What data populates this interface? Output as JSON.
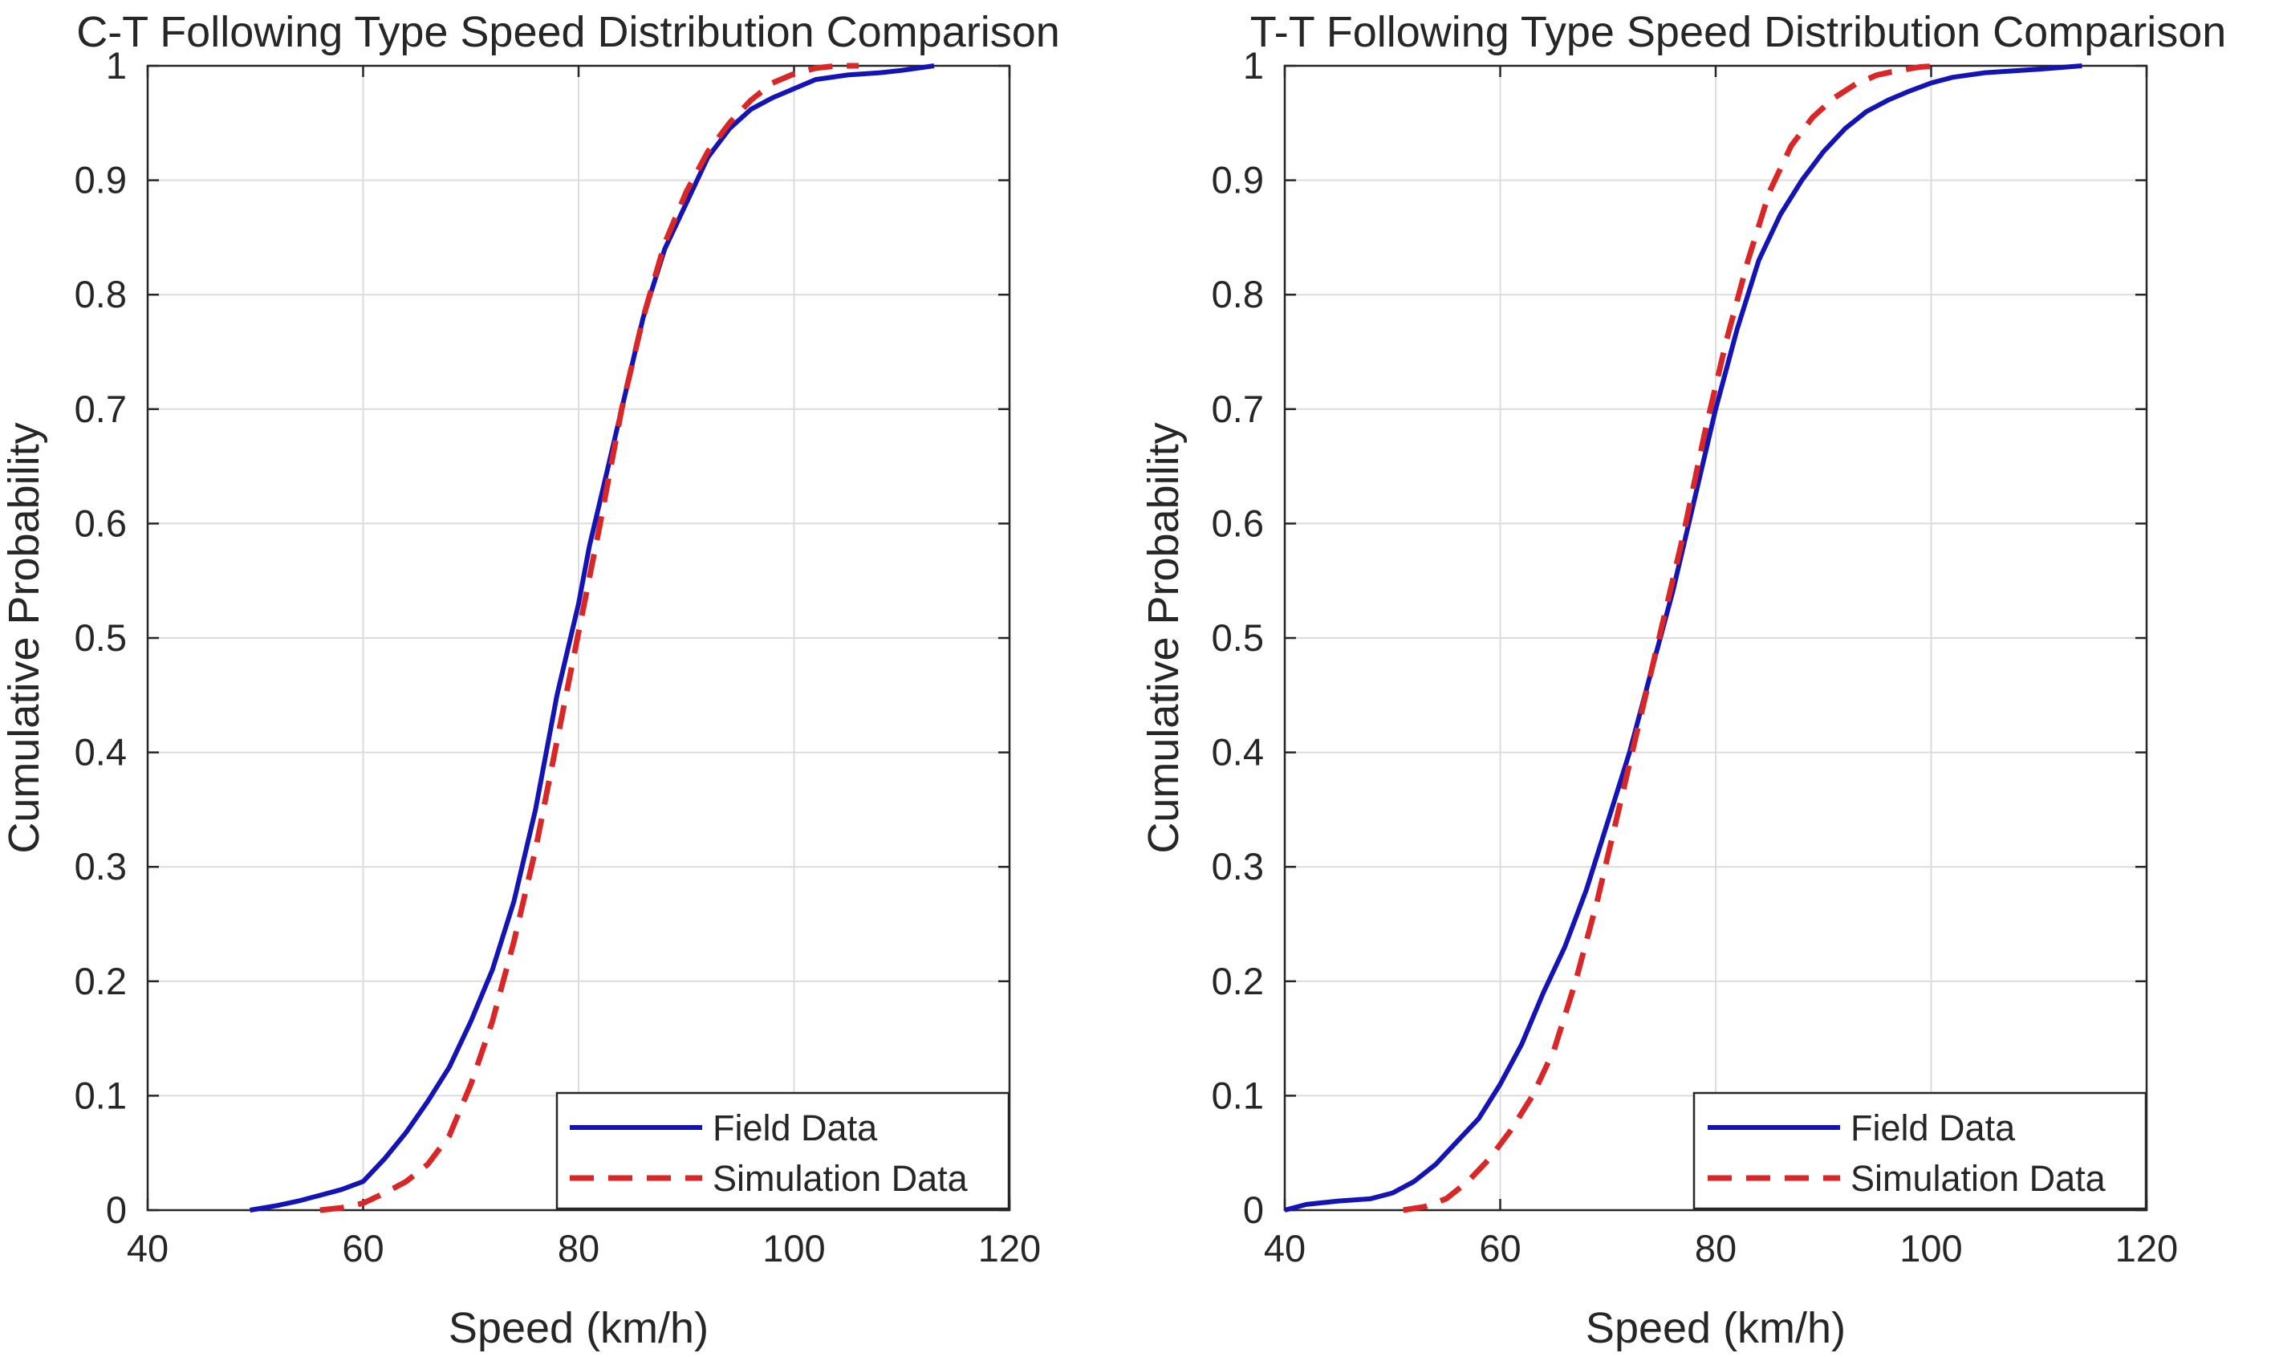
{
  "colors": {
    "field": "#1414b4",
    "simulation": "#d92626",
    "axis": "#262626",
    "grid": "#dcdcdc"
  },
  "chart_data": [
    {
      "type": "line",
      "title": "C-T Following Type Speed Distribution Comparison",
      "xlabel": "Speed (km/h)",
      "ylabel": "Cumulative Probability",
      "xlim": [
        40,
        120
      ],
      "ylim": [
        0,
        1
      ],
      "xticks": [
        40,
        60,
        80,
        100,
        120
      ],
      "yticks": [
        0,
        0.1,
        0.2,
        0.3,
        0.4,
        0.5,
        0.6,
        0.7,
        0.8,
        0.9,
        1
      ],
      "grid": true,
      "legend_position": "bottom-right",
      "series": [
        {
          "name": "Field Data",
          "style": "solid",
          "color": "#1414b4",
          "points": [
            [
              49.5,
              0.0
            ],
            [
              52,
              0.004
            ],
            [
              54,
              0.008
            ],
            [
              56,
              0.013
            ],
            [
              58,
              0.018
            ],
            [
              60,
              0.025
            ],
            [
              62,
              0.045
            ],
            [
              64,
              0.068
            ],
            [
              66,
              0.095
            ],
            [
              68,
              0.125
            ],
            [
              70,
              0.165
            ],
            [
              72,
              0.21
            ],
            [
              74,
              0.27
            ],
            [
              76,
              0.35
            ],
            [
              77,
              0.4
            ],
            [
              78,
              0.45
            ],
            [
              80,
              0.53
            ],
            [
              81,
              0.58
            ],
            [
              82,
              0.62
            ],
            [
              84,
              0.7
            ],
            [
              86,
              0.78
            ],
            [
              88,
              0.84
            ],
            [
              90,
              0.88
            ],
            [
              92,
              0.92
            ],
            [
              94,
              0.945
            ],
            [
              96,
              0.962
            ],
            [
              98,
              0.972
            ],
            [
              100,
              0.98
            ],
            [
              102,
              0.988
            ],
            [
              105,
              0.992
            ],
            [
              108,
              0.994
            ],
            [
              110,
              0.996
            ],
            [
              113,
              1.0
            ]
          ]
        },
        {
          "name": "Simulation Data",
          "style": "dashed",
          "color": "#d92626",
          "points": [
            [
              56,
              0.0
            ],
            [
              58,
              0.002
            ],
            [
              60,
              0.006
            ],
            [
              62,
              0.015
            ],
            [
              64,
              0.025
            ],
            [
              66,
              0.04
            ],
            [
              68,
              0.065
            ],
            [
              70,
              0.11
            ],
            [
              72,
              0.165
            ],
            [
              74,
              0.235
            ],
            [
              76,
              0.315
            ],
            [
              78,
              0.41
            ],
            [
              80,
              0.505
            ],
            [
              82,
              0.6
            ],
            [
              84,
              0.7
            ],
            [
              86,
              0.78
            ],
            [
              88,
              0.845
            ],
            [
              90,
              0.89
            ],
            [
              92,
              0.925
            ],
            [
              94,
              0.95
            ],
            [
              96,
              0.97
            ],
            [
              98,
              0.985
            ],
            [
              100,
              0.993
            ],
            [
              102,
              0.998
            ],
            [
              104,
              1.0
            ],
            [
              106,
              1.0
            ]
          ]
        }
      ]
    },
    {
      "type": "line",
      "title": "T-T Following Type Speed Distribution Comparison",
      "xlabel": "Speed (km/h)",
      "ylabel": "Cumulative Probability",
      "xlim": [
        40,
        120
      ],
      "ylim": [
        0,
        1
      ],
      "xticks": [
        40,
        60,
        80,
        100,
        120
      ],
      "yticks": [
        0,
        0.1,
        0.2,
        0.3,
        0.4,
        0.5,
        0.6,
        0.7,
        0.8,
        0.9,
        1
      ],
      "grid": true,
      "legend_position": "bottom-right",
      "series": [
        {
          "name": "Field Data",
          "style": "solid",
          "color": "#1414b4",
          "points": [
            [
              40,
              0.0
            ],
            [
              42,
              0.005
            ],
            [
              45,
              0.008
            ],
            [
              48,
              0.01
            ],
            [
              50,
              0.015
            ],
            [
              52,
              0.025
            ],
            [
              54,
              0.04
            ],
            [
              56,
              0.06
            ],
            [
              58,
              0.08
            ],
            [
              60,
              0.11
            ],
            [
              62,
              0.145
            ],
            [
              64,
              0.19
            ],
            [
              66,
              0.23
            ],
            [
              68,
              0.28
            ],
            [
              70,
              0.34
            ],
            [
              72,
              0.4
            ],
            [
              74,
              0.47
            ],
            [
              76,
              0.54
            ],
            [
              78,
              0.62
            ],
            [
              80,
              0.7
            ],
            [
              82,
              0.77
            ],
            [
              84,
              0.83
            ],
            [
              86,
              0.87
            ],
            [
              88,
              0.9
            ],
            [
              90,
              0.925
            ],
            [
              92,
              0.945
            ],
            [
              94,
              0.96
            ],
            [
              96,
              0.97
            ],
            [
              98,
              0.978
            ],
            [
              100,
              0.985
            ],
            [
              102,
              0.99
            ],
            [
              105,
              0.994
            ],
            [
              110,
              0.997
            ],
            [
              114,
              1.0
            ]
          ]
        },
        {
          "name": "Simulation Data",
          "style": "dashed",
          "color": "#d92626",
          "points": [
            [
              51,
              0.0
            ],
            [
              53,
              0.003
            ],
            [
              55,
              0.01
            ],
            [
              57,
              0.025
            ],
            [
              59,
              0.045
            ],
            [
              61,
              0.07
            ],
            [
              63,
              0.1
            ],
            [
              65,
              0.14
            ],
            [
              67,
              0.2
            ],
            [
              69,
              0.27
            ],
            [
              71,
              0.35
            ],
            [
              73,
              0.43
            ],
            [
              75,
              0.51
            ],
            [
              77,
              0.59
            ],
            [
              79,
              0.68
            ],
            [
              81,
              0.76
            ],
            [
              83,
              0.83
            ],
            [
              85,
              0.89
            ],
            [
              87,
              0.93
            ],
            [
              89,
              0.955
            ],
            [
              91,
              0.972
            ],
            [
              93,
              0.984
            ],
            [
              95,
              0.992
            ],
            [
              97,
              0.996
            ],
            [
              99,
              0.999
            ],
            [
              101,
              1.0
            ]
          ]
        }
      ]
    }
  ]
}
